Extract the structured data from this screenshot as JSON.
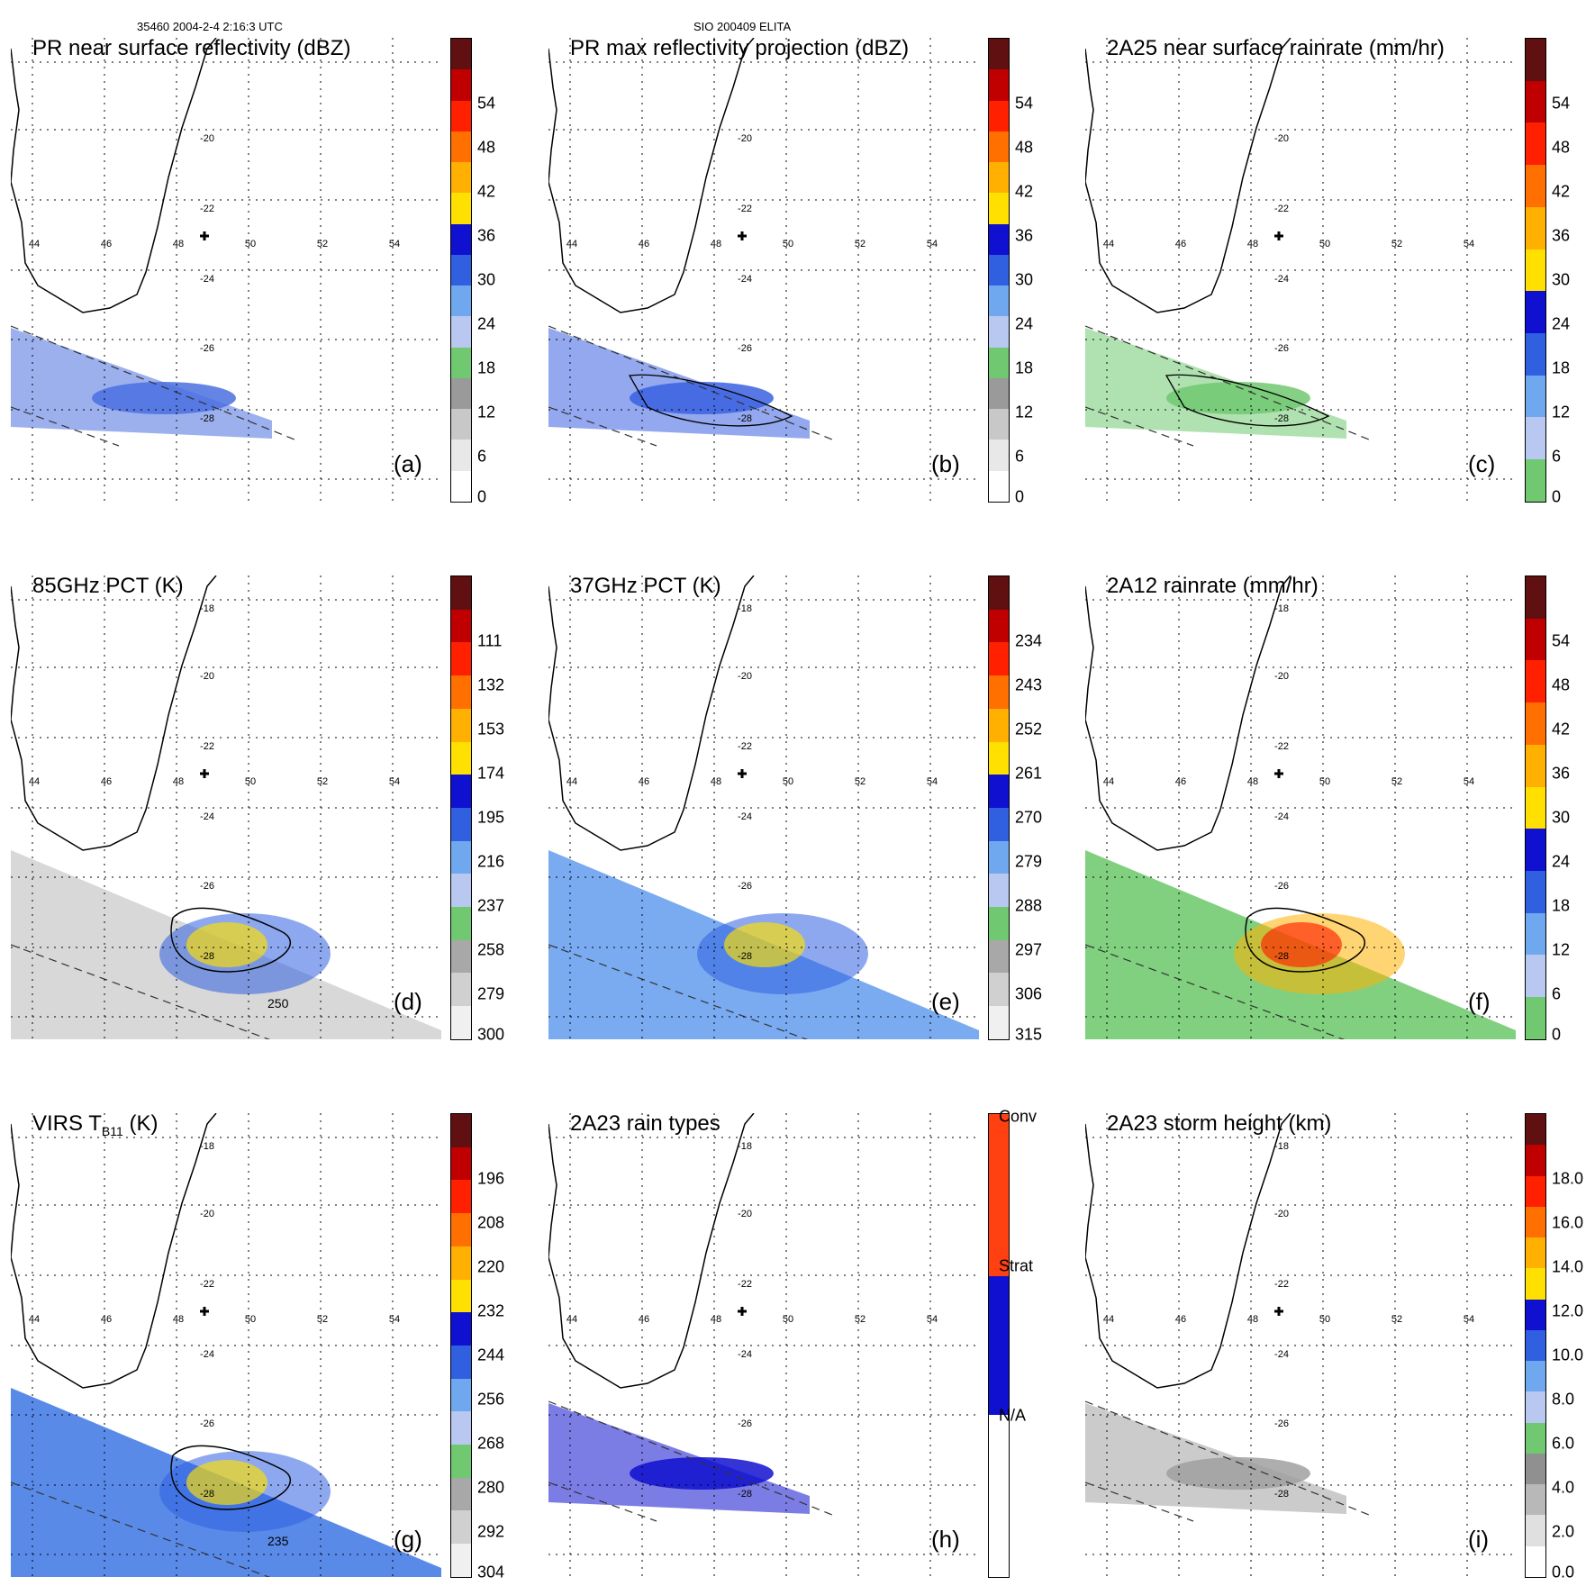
{
  "header": {
    "left": "35460 2004-2-4 2:16:3 UTC",
    "center": "SIO 200409 ELITA"
  },
  "axes": {
    "lon_labels": [
      "44",
      "46",
      "48",
      "50",
      "52",
      "54"
    ],
    "lat_labels": [
      "-18",
      "-20",
      "-22",
      "-24",
      "-26",
      "-28"
    ]
  },
  "panels": [
    {
      "id": "a",
      "title": "PR near surface reflectivity (dBZ)",
      "tag": "(a)",
      "ticks": [
        "0",
        "6",
        "12",
        "18",
        "24",
        "30",
        "36",
        "42",
        "48",
        "54"
      ],
      "colors": [
        "#ffffff",
        "#e8e8e8",
        "#c8c8c8",
        "#9a9a9a",
        "#70c870",
        "#b8c8f0",
        "#70a8f0",
        "#3060e0",
        "#1010d0",
        "#ffe000",
        "#ffb000",
        "#ff7000",
        "#ff2000",
        "#c00000",
        "#601010"
      ],
      "overlay": "strip",
      "fill": "#4a70e0",
      "contour": false
    },
    {
      "id": "b",
      "title": "PR max reflectivity projection (dBZ)",
      "tag": "(b)",
      "ticks": [
        "0",
        "6",
        "12",
        "18",
        "24",
        "30",
        "36",
        "42",
        "48",
        "54"
      ],
      "colors": [
        "#ffffff",
        "#e8e8e8",
        "#c8c8c8",
        "#9a9a9a",
        "#70c870",
        "#b8c8f0",
        "#70a8f0",
        "#3060e0",
        "#1010d0",
        "#ffe000",
        "#ffb000",
        "#ff7000",
        "#ff2000",
        "#c00000",
        "#601010"
      ],
      "overlay": "strip",
      "fill": "#3a60e0",
      "contour": true
    },
    {
      "id": "c",
      "title": "2A25 near surface rainrate (mm/hr)",
      "tag": "(c)",
      "ticks": [
        "0",
        "6",
        "12",
        "18",
        "24",
        "30",
        "36",
        "42",
        "48",
        "54"
      ],
      "colors": [
        "#70c870",
        "#b8c8f0",
        "#70a8f0",
        "#3060e0",
        "#1010d0",
        "#ffe000",
        "#ffb000",
        "#ff7000",
        "#ff2000",
        "#c00000",
        "#601010"
      ],
      "overlay": "strip",
      "fill": "#70c870",
      "contour": true
    },
    {
      "id": "d",
      "title": "85GHz PCT (K)",
      "tag": "(d)",
      "ticks": [
        "300",
        "279",
        "258",
        "237",
        "216",
        "195",
        "174",
        "153",
        "132",
        "111"
      ],
      "colors": [
        "#f0f0f0",
        "#d0d0d0",
        "#a8a8a8",
        "#70c870",
        "#b8c8f0",
        "#70a8f0",
        "#3060e0",
        "#1010d0",
        "#ffe000",
        "#ffb000",
        "#ff7000",
        "#ff2000",
        "#c00000",
        "#601010"
      ],
      "overlay": "swath",
      "fill": "#d8d8d8",
      "contour": true,
      "contour_label": "250"
    },
    {
      "id": "e",
      "title": "37GHz PCT (K)",
      "tag": "(e)",
      "ticks": [
        "315",
        "306",
        "297",
        "288",
        "279",
        "270",
        "261",
        "252",
        "243",
        "234"
      ],
      "colors": [
        "#f0f0f0",
        "#d0d0d0",
        "#a8a8a8",
        "#70c870",
        "#b8c8f0",
        "#70a8f0",
        "#3060e0",
        "#1010d0",
        "#ffe000",
        "#ffb000",
        "#ff7000",
        "#ff2000",
        "#c00000",
        "#601010"
      ],
      "overlay": "swath",
      "fill": "#7aaaf0",
      "contour": false
    },
    {
      "id": "f",
      "title": "2A12 rainrate (mm/hr)",
      "tag": "(f)",
      "ticks": [
        "0",
        "6",
        "12",
        "18",
        "24",
        "30",
        "36",
        "42",
        "48",
        "54"
      ],
      "colors": [
        "#70c870",
        "#b8c8f0",
        "#70a8f0",
        "#3060e0",
        "#1010d0",
        "#ffe000",
        "#ffb000",
        "#ff7000",
        "#ff2000",
        "#c00000",
        "#601010"
      ],
      "overlay": "swath",
      "fill": "#80d080",
      "contour": true
    },
    {
      "id": "g",
      "title": "VIRS T",
      "title_sub": "B11",
      "title_tail": " (K)",
      "tag": "(g)",
      "ticks": [
        "304",
        "292",
        "280",
        "268",
        "256",
        "244",
        "232",
        "220",
        "208",
        "196"
      ],
      "colors": [
        "#f0f0f0",
        "#d0d0d0",
        "#a8a8a8",
        "#70c870",
        "#b8c8f0",
        "#70a8f0",
        "#3060e0",
        "#1010d0",
        "#ffe000",
        "#ffb000",
        "#ff7000",
        "#ff2000",
        "#c00000",
        "#601010"
      ],
      "overlay": "swath",
      "fill": "#5a8ae8",
      "contour": true,
      "contour_label": "235"
    },
    {
      "id": "h",
      "title": "2A23 rain types",
      "tag": "(h)",
      "ticks": [
        "N/A",
        "Strat",
        "Conv"
      ],
      "colors": [
        "#ffffff",
        "#1010d0",
        "#ff4010"
      ],
      "overlay": "strip",
      "fill": "#1010d0",
      "contour": false,
      "categorical": true
    },
    {
      "id": "i",
      "title": "2A23 storm height (km)",
      "tag": "(i)",
      "ticks": [
        "0.0",
        "2.0",
        "4.0",
        "6.0",
        "8.0",
        "10.0",
        "12.0",
        "14.0",
        "16.0",
        "18.0"
      ],
      "colors": [
        "#ffffff",
        "#e0e0e0",
        "#b8b8b8",
        "#909090",
        "#70c870",
        "#b8c8f0",
        "#70a8f0",
        "#3060e0",
        "#1010d0",
        "#ffe000",
        "#ffb000",
        "#ff7000",
        "#ff2000",
        "#c00000",
        "#601010"
      ],
      "overlay": "strip",
      "fill": "#a0a0a0",
      "contour": false
    }
  ]
}
